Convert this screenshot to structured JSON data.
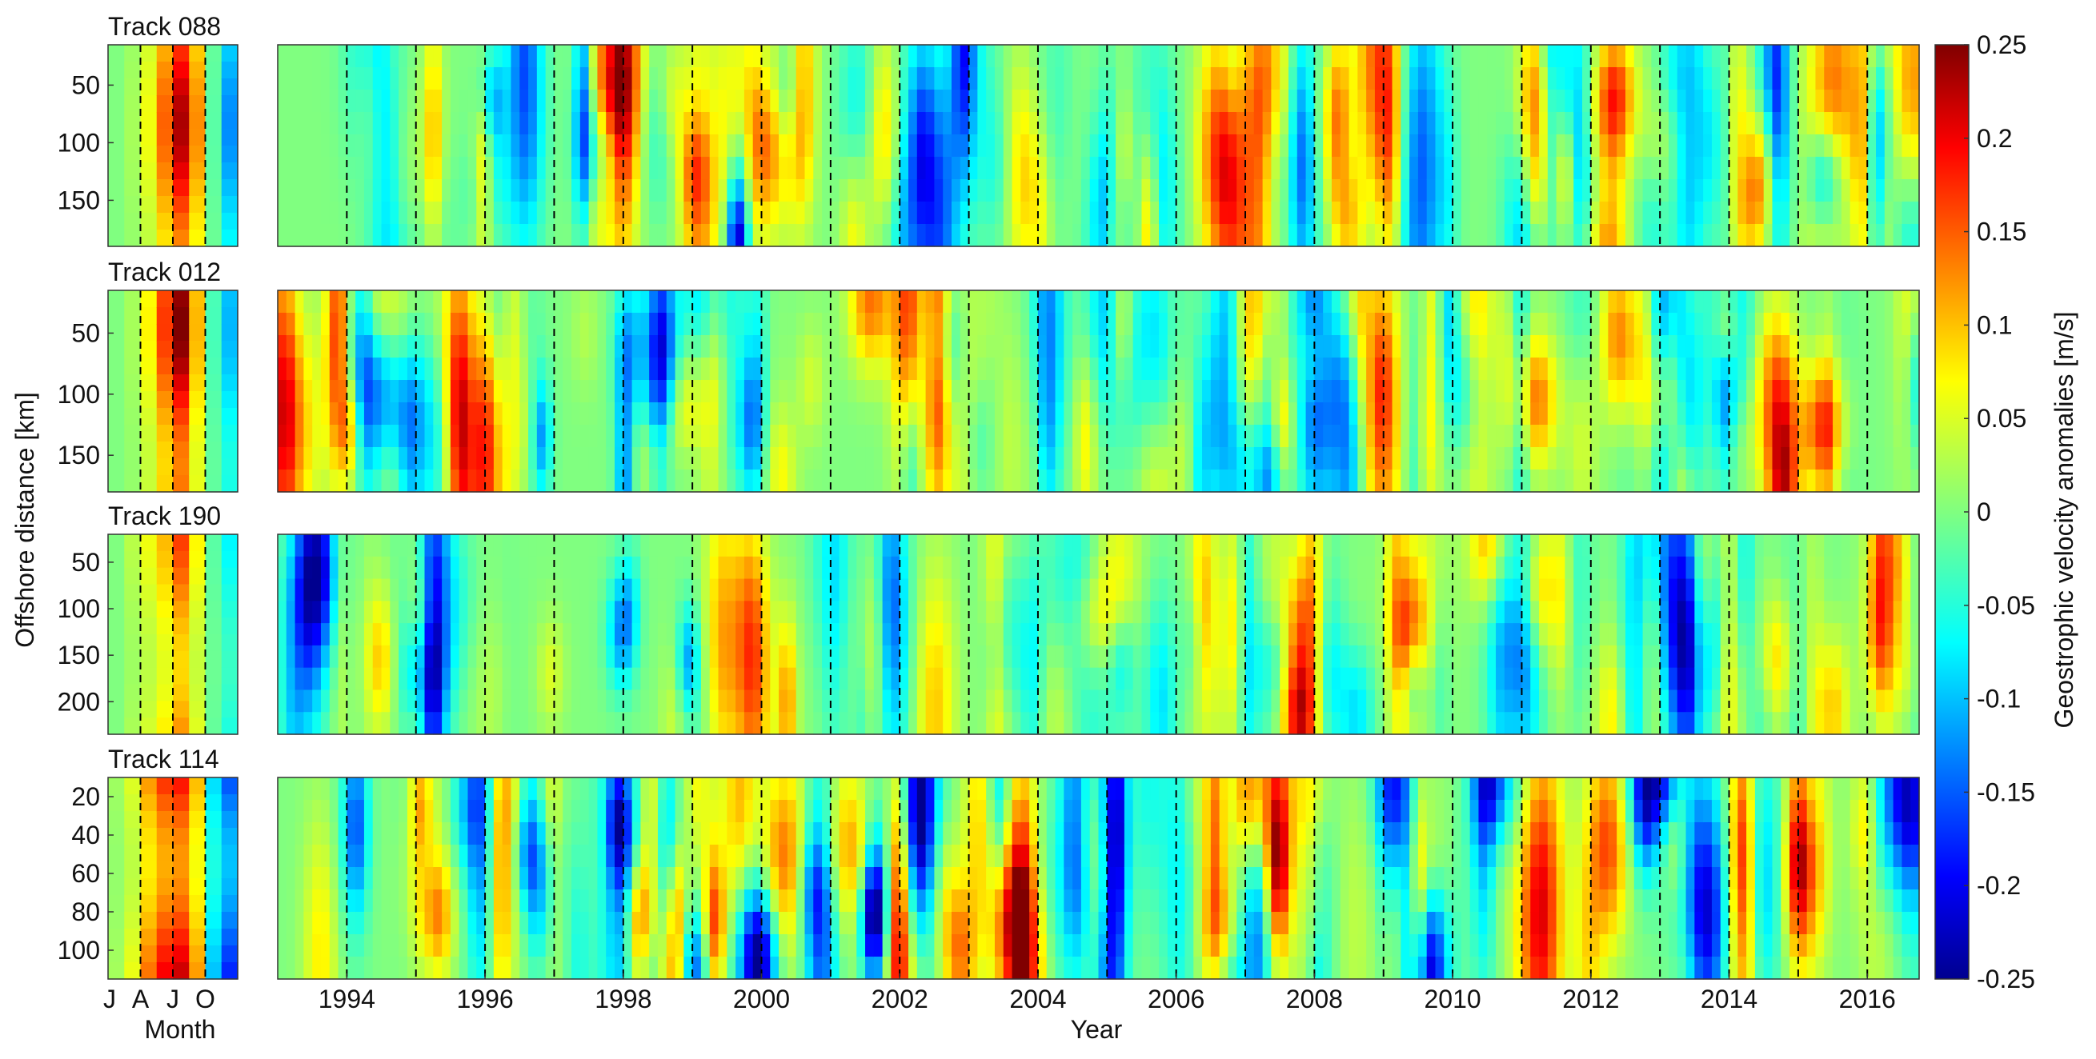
{
  "chart_data": {
    "type": "heatmap",
    "panels": [
      {
        "title": "Track 088",
        "y_ticks": [
          50,
          100,
          150
        ],
        "y_range": [
          15,
          190
        ],
        "climatology_anoms": [
          0.0,
          0.02,
          0.06,
          0.14,
          0.22,
          0.12,
          -0.02,
          -0.12
        ],
        "timeseries_seed": 11,
        "timeseries_amp": 0.16
      },
      {
        "title": "Track 012",
        "y_ticks": [
          50,
          100,
          150
        ],
        "y_range": [
          15,
          180
        ],
        "climatology_anoms": [
          0.0,
          0.02,
          0.07,
          0.16,
          0.24,
          0.1,
          -0.03,
          -0.1
        ],
        "timeseries_seed": 23,
        "timeseries_amp": 0.14
      },
      {
        "title": "Track 190",
        "y_ticks": [
          50,
          100,
          150,
          200
        ],
        "y_range": [
          20,
          235
        ],
        "climatology_anoms": [
          0.0,
          0.03,
          0.06,
          0.1,
          0.16,
          0.07,
          -0.02,
          -0.07
        ],
        "timeseries_seed": 37,
        "timeseries_amp": 0.12
      },
      {
        "title": "Track 114",
        "y_ticks": [
          20,
          40,
          60,
          80,
          100
        ],
        "y_range": [
          10,
          115
        ],
        "climatology_anoms": [
          0.02,
          0.06,
          0.14,
          0.2,
          0.22,
          0.12,
          -0.1,
          -0.18
        ],
        "timeseries_seed": 53,
        "timeseries_amp": 0.18
      }
    ],
    "climatology_xlabel": "Month",
    "climatology_xticks": [
      "J",
      "A",
      "J",
      "O"
    ],
    "years_range": [
      1993,
      2016.75
    ],
    "year_tick_labels": [
      "1994",
      "1996",
      "1998",
      "2000",
      "2002",
      "2004",
      "2006",
      "2008",
      "2010",
      "2012",
      "2014",
      "2016"
    ],
    "xlabel": "Year",
    "ylabel": "Offshore distance [km]",
    "colorbar": {
      "label": "Geostrophic velocity anomalies [m/s]",
      "min": -0.25,
      "max": 0.25,
      "ticks": [
        "0.25",
        "0.2",
        "0.15",
        "0.1",
        "0.05",
        "0",
        "-0.05",
        "-0.1",
        "-0.15",
        "-0.2",
        "-0.25"
      ],
      "colormap": "jet"
    }
  }
}
